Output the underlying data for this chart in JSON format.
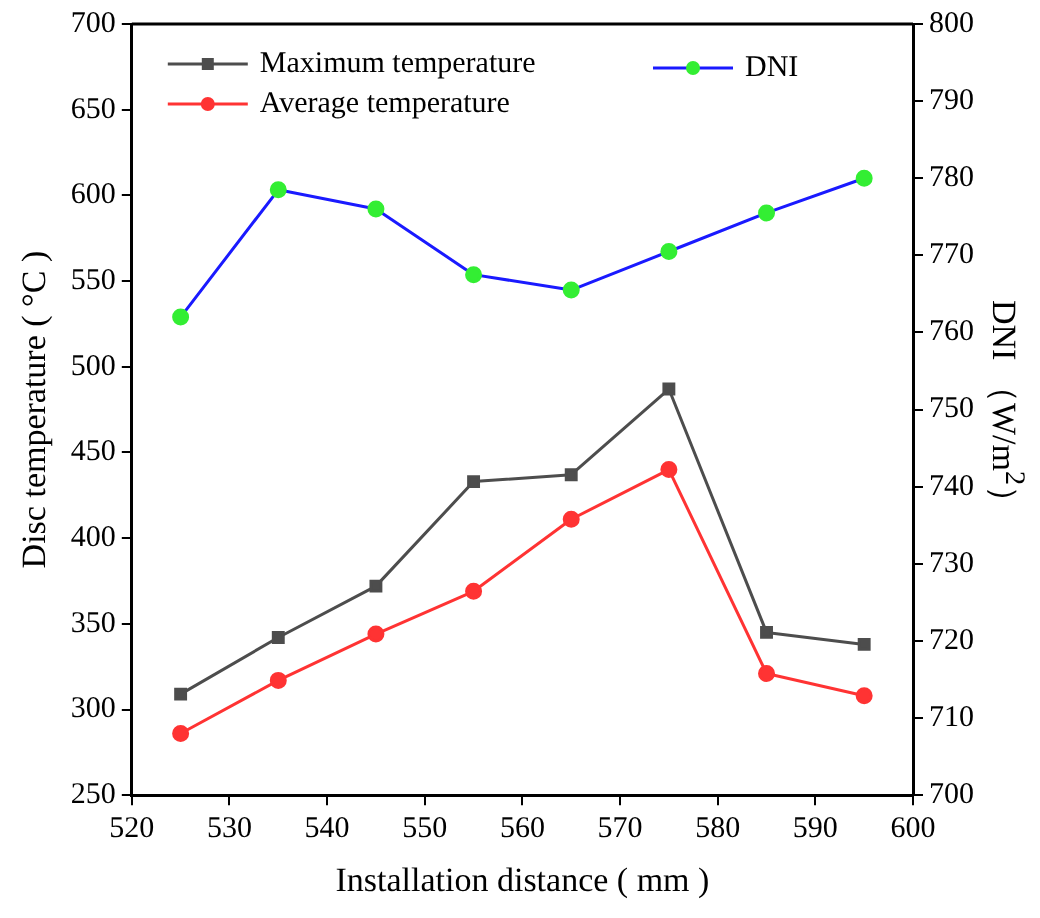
{
  "chart_data": {
    "type": "line",
    "xlabel": "Installation distance ( mm )",
    "ylabel": "Disc temperature ( °C )",
    "y2label": "DNI （W/m$^{2}$）",
    "x": [
      525,
      535,
      545,
      555,
      565,
      575,
      585,
      595
    ],
    "series": [
      {
        "name": "Maximum temperature",
        "color": "#4d4d4d",
        "marker": "square",
        "values": [
          309,
          342,
          372,
          433,
          437,
          487,
          345,
          338
        ]
      },
      {
        "name": "Average temperature",
        "color": "#ff3333",
        "marker": "circle",
        "values": [
          286,
          317,
          344,
          369,
          411,
          440,
          321,
          308
        ]
      },
      {
        "name": "DNI",
        "color": "#1a1aff",
        "marker": "circle",
        "axis": "y2",
        "values": [
          762,
          778.5,
          776,
          767.5,
          765.5,
          770.5,
          775.5,
          780
        ]
      }
    ],
    "xlim": [
      520,
      600
    ],
    "xticks": [
      520,
      530,
      540,
      550,
      560,
      570,
      580,
      590,
      600
    ],
    "ylim": [
      250,
      700
    ],
    "yticks": [
      250,
      300,
      350,
      400,
      450,
      500,
      550,
      600,
      650,
      700
    ],
    "y2lim": [
      700,
      800
    ],
    "y2ticks": [
      700,
      710,
      720,
      730,
      740,
      750,
      760,
      770,
      780,
      790,
      800
    ],
    "grid": false,
    "legend": "top"
  }
}
